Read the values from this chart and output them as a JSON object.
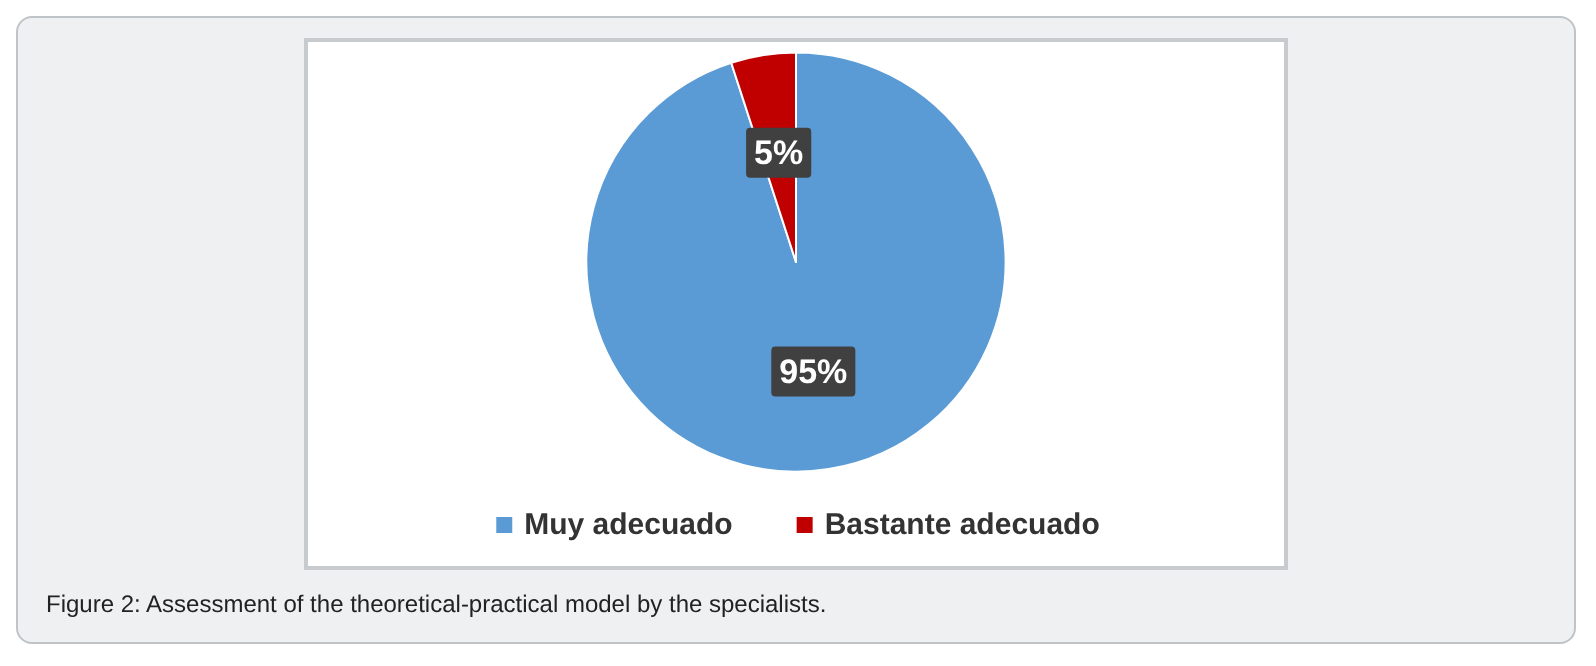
{
  "chart_data": {
    "type": "pie",
    "categories": [
      "Muy adecuado",
      "Bastante adecuado"
    ],
    "values": [
      95,
      5
    ],
    "colors": [
      "#5b9bd5",
      "#c00000"
    ],
    "value_labels": [
      "95%",
      "5%"
    ],
    "legend": "bottom",
    "annotations": [
      "Figure 2: Assessment of the theoretical-practical model by the specialists."
    ]
  }
}
